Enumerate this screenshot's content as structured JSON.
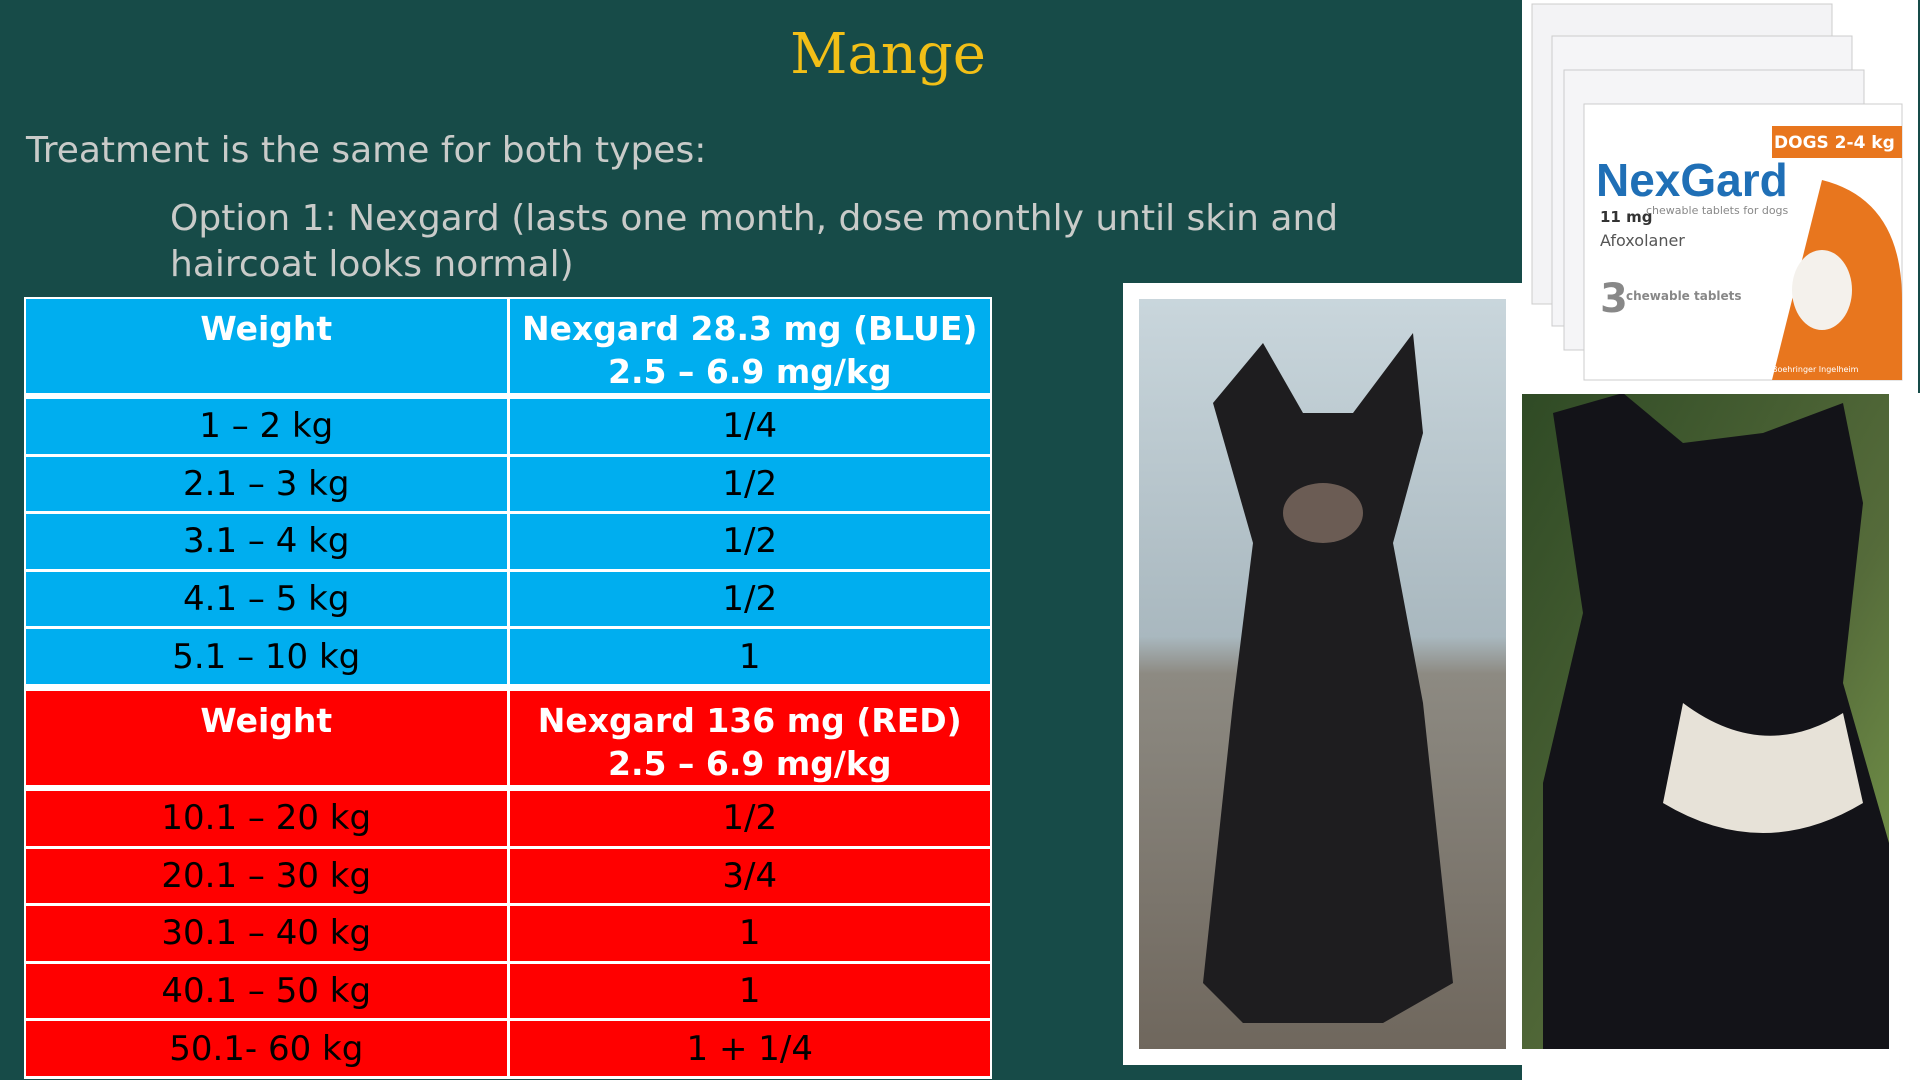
{
  "title": "Mange",
  "subtitle": "Treatment is the same for both types:",
  "option": "Option 1: Nexgard (lasts one month, dose monthly until skin and haircoat looks normal)",
  "tables": [
    {
      "header": {
        "weight": "Weight",
        "product": "Nexgard 28.3 mg (BLUE)",
        "dose": "2.5 – 6.9 mg/kg"
      },
      "rows": [
        [
          "1 – 2 kg",
          "1/4"
        ],
        [
          "2.1 – 3 kg",
          "1/2"
        ],
        [
          "3.1 – 4 kg",
          "1/2"
        ],
        [
          "4.1 – 5 kg",
          "1/2"
        ],
        [
          "5.1 – 10 kg",
          "1"
        ]
      ]
    },
    {
      "header": {
        "weight": "Weight",
        "product": "Nexgard 136 mg (RED)",
        "dose": "2.5 – 6.9 mg/kg"
      },
      "rows": [
        [
          "10.1 – 20 kg",
          "1/2"
        ],
        [
          "20.1 – 30 kg",
          "3/4"
        ],
        [
          "30.1 – 40 kg",
          "1"
        ],
        [
          "40.1 – 50 kg",
          "1"
        ],
        [
          "50.1- 60 kg",
          "1 + 1/4"
        ]
      ]
    }
  ],
  "product_box": {
    "brand": "NexGard",
    "strength": "11 mg",
    "form": "chewable tablets for dogs",
    "ingredient": "Afoxolaner",
    "count": "3",
    "count_label": "chewable tablets",
    "weight": "DOGS 2-4 kg",
    "maker": "Boehringer Ingelheim"
  }
}
